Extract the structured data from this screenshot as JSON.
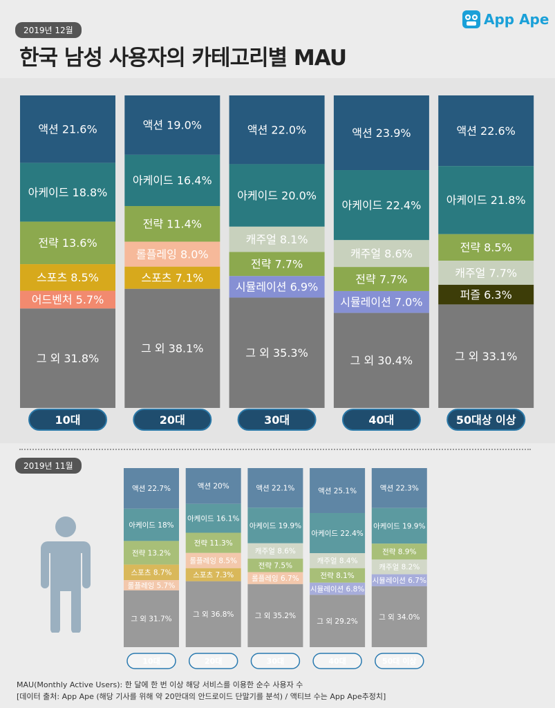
{
  "header": {
    "date_label": "2019년 12월",
    "title": "한국 남성 사용자의 카테고리별 MAU",
    "logo_text": "App Ape"
  },
  "colors": {
    "액션": "#275a7e",
    "아케이드": "#2a7a80",
    "전략": "#8ca94e",
    "스포츠": "#d7a91c",
    "어드벤처": "#f28a6f",
    "롤플레잉": "#f6b99a",
    "캐주얼": "#c8d1bd",
    "시뮬레이션": "#8690d4",
    "퍼즐": "#3d3d08",
    "그 외": "#7a7a7a"
  },
  "colors_light": {
    "액션": "#5f86a5",
    "아케이드": "#5c9aa0",
    "전략": "#a8bf78",
    "스포츠": "#d9b85a",
    "어드벤처": "#f0a68f",
    "롤플레잉": "#f3c8ac",
    "캐주얼": "#d2d8c8",
    "시뮬레이션": "#a7addb",
    "퍼즐": "#6a6a30",
    "그 외": "#9a9a9a"
  },
  "chart_data": [
    {
      "type": "bar",
      "stacked": true,
      "period": "2019년 12월",
      "categories": [
        "10대",
        "20대",
        "30대",
        "40대",
        "50대상 이상"
      ],
      "stacks": [
        [
          {
            "name": "액션",
            "value": 21.6,
            "label": "액션 21.6%"
          },
          {
            "name": "아케이드",
            "value": 18.8,
            "label": "아케이드 18.8%"
          },
          {
            "name": "전략",
            "value": 13.6,
            "label": "전략 13.6%"
          },
          {
            "name": "스포츠",
            "value": 8.5,
            "label": "스포츠 8.5%"
          },
          {
            "name": "어드벤처",
            "value": 5.7,
            "label": "어드벤처 5.7%"
          },
          {
            "name": "그 외",
            "value": 31.8,
            "label": "그 외 31.8%"
          }
        ],
        [
          {
            "name": "액션",
            "value": 19.0,
            "label": "액션 19.0%"
          },
          {
            "name": "아케이드",
            "value": 16.4,
            "label": "아케이드 16.4%"
          },
          {
            "name": "전략",
            "value": 11.4,
            "label": "전략 11.4%"
          },
          {
            "name": "롤플레잉",
            "value": 8.0,
            "label": "롤플레잉 8.0%"
          },
          {
            "name": "스포츠",
            "value": 7.1,
            "label": "스포츠 7.1%"
          },
          {
            "name": "그 외",
            "value": 38.1,
            "label": "그 외 38.1%"
          }
        ],
        [
          {
            "name": "액션",
            "value": 22.0,
            "label": "액션 22.0%"
          },
          {
            "name": "아케이드",
            "value": 20.0,
            "label": "아케이드 20.0%"
          },
          {
            "name": "캐주얼",
            "value": 8.1,
            "label": "캐주얼 8.1%"
          },
          {
            "name": "전략",
            "value": 7.7,
            "label": "전략 7.7%"
          },
          {
            "name": "시뮬레이션",
            "value": 6.9,
            "label": "시뮬레이션 6.9%"
          },
          {
            "name": "그 외",
            "value": 35.3,
            "label": "그 외 35.3%"
          }
        ],
        [
          {
            "name": "액션",
            "value": 23.9,
            "label": "액션 23.9%"
          },
          {
            "name": "아케이드",
            "value": 22.4,
            "label": "아케이드 22.4%"
          },
          {
            "name": "캐주얼",
            "value": 8.6,
            "label": "캐주얼 8.6%"
          },
          {
            "name": "전략",
            "value": 7.7,
            "label": "전략 7.7%"
          },
          {
            "name": "시뮬레이션",
            "value": 7.0,
            "label": "시뮬레이션 7.0%"
          },
          {
            "name": "그 외",
            "value": 30.4,
            "label": "그 외 30.4%"
          }
        ],
        [
          {
            "name": "액션",
            "value": 22.6,
            "label": "액션 22.6%"
          },
          {
            "name": "아케이드",
            "value": 21.8,
            "label": "아케이드 21.8%"
          },
          {
            "name": "전략",
            "value": 8.5,
            "label": "전략 8.5%"
          },
          {
            "name": "캐주얼",
            "value": 7.7,
            "label": "캐주얼 7.7%"
          },
          {
            "name": "퍼즐",
            "value": 6.3,
            "label": "퍼즐 6.3%"
          },
          {
            "name": "그 외",
            "value": 33.1,
            "label": "그 외 33.1%"
          }
        ]
      ]
    },
    {
      "type": "bar",
      "stacked": true,
      "period": "2019년 11월",
      "categories": [
        "10대",
        "20대",
        "30대",
        "40대",
        "50대 이상"
      ],
      "stacks": [
        [
          {
            "name": "액션",
            "value": 22.7,
            "label": "액션 22.7%"
          },
          {
            "name": "아케이드",
            "value": 18,
            "label": "아케이드 18%"
          },
          {
            "name": "전략",
            "value": 13.2,
            "label": "전략 13.2%"
          },
          {
            "name": "스포츠",
            "value": 8.7,
            "label": "스포츠 8.7%"
          },
          {
            "name": "롤플레잉",
            "value": 5.7,
            "label": "롤플레잉 5.7%"
          },
          {
            "name": "그 외",
            "value": 31.7,
            "label": "그 외 31.7%"
          }
        ],
        [
          {
            "name": "액션",
            "value": 20,
            "label": "액션 20%"
          },
          {
            "name": "아케이드",
            "value": 16.1,
            "label": "아케이드 16.1%"
          },
          {
            "name": "전략",
            "value": 11.3,
            "label": "전략 11.3%"
          },
          {
            "name": "롤플레잉",
            "value": 8.5,
            "label": "롤플레잉 8.5%"
          },
          {
            "name": "스포츠",
            "value": 7.3,
            "label": "스포츠 7.3%"
          },
          {
            "name": "그 외",
            "value": 36.8,
            "label": "그 외 36.8%"
          }
        ],
        [
          {
            "name": "액션",
            "value": 22.1,
            "label": "액션 22.1%"
          },
          {
            "name": "아케이드",
            "value": 19.9,
            "label": "아케이드 19.9%"
          },
          {
            "name": "캐주얼",
            "value": 8.6,
            "label": "캐주얼 8.6%"
          },
          {
            "name": "전략",
            "value": 7.5,
            "label": "전략 7.5%"
          },
          {
            "name": "롤플레잉",
            "value": 6.7,
            "label": "롤플레잉 6.7%"
          },
          {
            "name": "그 외",
            "value": 35.2,
            "label": "그 외 35.2%"
          }
        ],
        [
          {
            "name": "액션",
            "value": 25.1,
            "label": "액션 25.1%"
          },
          {
            "name": "아케이드",
            "value": 22.4,
            "label": "아케이드 22.4%"
          },
          {
            "name": "캐주얼",
            "value": 8.4,
            "label": "캐주얼 8.4%"
          },
          {
            "name": "전략",
            "value": 8.1,
            "label": "전략 8.1%"
          },
          {
            "name": "시뮬레이션",
            "value": 6.8,
            "label": "시뮬레이션 6.8%"
          },
          {
            "name": "그 외",
            "value": 29.2,
            "label": "그 외 29.2%"
          }
        ],
        [
          {
            "name": "액션",
            "value": 22.3,
            "label": "액션 22.3%"
          },
          {
            "name": "아케이드",
            "value": 19.9,
            "label": "아케이드 19.9%"
          },
          {
            "name": "전략",
            "value": 8.9,
            "label": "전략 8.9%"
          },
          {
            "name": "캐주얼",
            "value": 8.2,
            "label": "캐주얼 8.2%"
          },
          {
            "name": "시뮬레이션",
            "value": 6.7,
            "label": "시뮬레이션 6.7%"
          },
          {
            "name": "그 외",
            "value": 34.0,
            "label": "그 외 34.0%"
          }
        ]
      ]
    }
  ],
  "footnote": {
    "line1": "MAU(Monthly Active Users):  한 달에 한 번 이상 해당 서비스를 이용한 순수 사용자 수",
    "line2": "[데이터 출처: App Ape (해당 기사를 위해 약 20만대의 안드로이드 단말기를 분석) / 액티브 수는 App Ape추정치]"
  }
}
